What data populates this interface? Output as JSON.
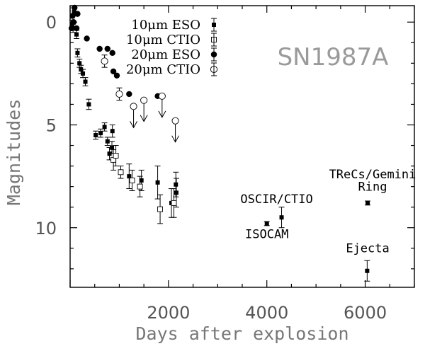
{
  "chart_data": {
    "type": "scatter",
    "title": "SN1987A",
    "xlabel": "Days after explosion",
    "ylabel": "Magnitudes",
    "xlim": [
      0,
      7000
    ],
    "ylim": [
      13,
      -1
    ],
    "y_inverted": true,
    "x_ticks": [
      2000,
      4000,
      6000
    ],
    "y_ticks": [
      0,
      5,
      10
    ],
    "legend_position": "top",
    "series": [
      {
        "name": "10μm ESO",
        "marker": "filled-square",
        "points": [
          {
            "x": 40,
            "y": 0.1
          },
          {
            "x": 60,
            "y": 0.3
          },
          {
            "x": 80,
            "y": -0.5
          },
          {
            "x": 130,
            "y": 0.6
          },
          {
            "x": 150,
            "y": 1.5
          },
          {
            "x": 190,
            "y": 2.0
          },
          {
            "x": 220,
            "y": 2.3
          },
          {
            "x": 260,
            "y": 2.5
          },
          {
            "x": 310,
            "y": 2.9
          },
          {
            "x": 380,
            "y": 4.0
          },
          {
            "x": 520,
            "y": 5.5
          },
          {
            "x": 620,
            "y": 5.4
          },
          {
            "x": 700,
            "y": 5.1
          },
          {
            "x": 760,
            "y": 5.8
          },
          {
            "x": 800,
            "y": 6.4
          },
          {
            "x": 850,
            "y": 6.1
          },
          {
            "x": 860,
            "y": 5.3
          },
          {
            "x": 1200,
            "y": 7.5
          },
          {
            "x": 1450,
            "y": 7.7
          },
          {
            "x": 1780,
            "y": 7.8
          },
          {
            "x": 2060,
            "y": 8.8
          },
          {
            "x": 2150,
            "y": 7.9
          },
          {
            "x": 2160,
            "y": 8.3
          },
          {
            "x": 4000,
            "y": 9.8
          },
          {
            "x": 4300,
            "y": 9.5
          },
          {
            "x": 6050,
            "y": 8.8
          },
          {
            "x": 6040,
            "y": 12.1
          }
        ],
        "yerr": [
          0.2,
          0.2,
          0.2,
          0.2,
          0.2,
          0.2,
          0.2,
          0.2,
          0.2,
          0.25,
          0.2,
          0.2,
          0.2,
          0.2,
          0.3,
          0.3,
          0.3,
          0.6,
          0.5,
          0.8,
          0.7,
          0.6,
          0.7,
          0.1,
          0.5,
          0.1,
          0.5
        ]
      },
      {
        "name": "10μm CTIO",
        "marker": "open-square",
        "points": [
          {
            "x": 880,
            "y": 6.7
          },
          {
            "x": 930,
            "y": 6.5
          },
          {
            "x": 1030,
            "y": 7.3
          },
          {
            "x": 1260,
            "y": 7.7
          },
          {
            "x": 1420,
            "y": 8.0
          },
          {
            "x": 1830,
            "y": 9.1
          },
          {
            "x": 2110,
            "y": 8.8
          }
        ],
        "yerr": [
          0.5,
          0.5,
          0.3,
          0.5,
          0.5,
          0.7,
          0.7
        ]
      },
      {
        "name": "20μm ESO",
        "marker": "filled-circle",
        "points": [
          {
            "x": 30,
            "y": 0.3
          },
          {
            "x": 50,
            "y": -0.3
          },
          {
            "x": 70,
            "y": 0.0
          },
          {
            "x": 90,
            "y": -0.7
          },
          {
            "x": 130,
            "y": 0.3
          },
          {
            "x": 150,
            "y": -0.4
          },
          {
            "x": 340,
            "y": 0.8
          },
          {
            "x": 600,
            "y": 1.3
          },
          {
            "x": 760,
            "y": 1.3
          },
          {
            "x": 860,
            "y": 1.5
          },
          {
            "x": 880,
            "y": 2.4
          },
          {
            "x": 950,
            "y": 2.6
          },
          {
            "x": 1200,
            "y": 3.5
          },
          {
            "x": 1780,
            "y": 3.6
          }
        ],
        "yerr": [
          0,
          0,
          0,
          0,
          0,
          0,
          0,
          0,
          0,
          0,
          0,
          0,
          0,
          0
        ]
      },
      {
        "name": "20μm CTIO",
        "marker": "open-circle",
        "points": [
          {
            "x": 700,
            "y": 1.9
          },
          {
            "x": 1000,
            "y": 3.5
          },
          {
            "x": 1290,
            "y": 4.1
          },
          {
            "x": 1500,
            "y": 3.8
          },
          {
            "x": 1870,
            "y": 3.6
          },
          {
            "x": 2140,
            "y": 4.8
          }
        ],
        "yerr": [
          0.3,
          0.3,
          0,
          0,
          0,
          0
        ],
        "upper_limits": [
          false,
          false,
          true,
          true,
          true,
          true
        ]
      }
    ],
    "annotations": [
      {
        "text": "ISOCAM",
        "x": 4000,
        "y": 10.5
      },
      {
        "text": "OSCIR/CTIO",
        "x": 4200,
        "y": 8.8
      },
      {
        "text": "TReCs/Gemini",
        "x": 6150,
        "y": 7.6
      },
      {
        "text": "Ring",
        "x": 6150,
        "y": 8.2
      },
      {
        "text": "Ejecta",
        "x": 6050,
        "y": 11.2
      }
    ]
  }
}
